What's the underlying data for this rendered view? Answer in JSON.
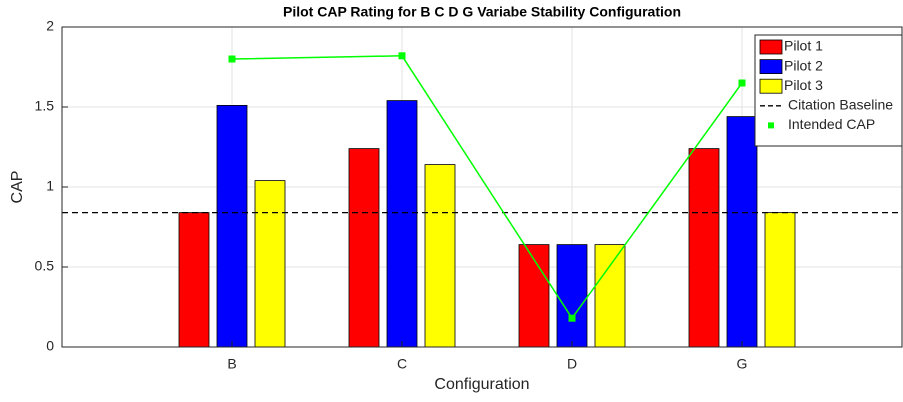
{
  "chart_data": {
    "type": "bar",
    "title": "Pilot CAP Rating for  B C D G Variabe Stability Configuration",
    "xlabel": "Configuration",
    "ylabel": "CAP",
    "categories": [
      "B",
      "C",
      "D",
      "G"
    ],
    "series": [
      {
        "name": "Pilot 1",
        "color": "#ff0000",
        "values": [
          0.84,
          1.24,
          0.64,
          1.24
        ]
      },
      {
        "name": "Pilot 2",
        "color": "#0000ff",
        "values": [
          1.51,
          1.54,
          0.64,
          1.44
        ]
      },
      {
        "name": "Pilot 3",
        "color": "#ffff00",
        "values": [
          1.04,
          1.14,
          0.64,
          0.84
        ]
      }
    ],
    "baseline": {
      "name": "Citation Baseline",
      "value": 0.84,
      "color": "#000000"
    },
    "intended": {
      "name": "Intended CAP",
      "color": "#00ff00",
      "values": [
        1.8,
        1.82,
        0.18,
        1.65
      ]
    },
    "ylim": [
      0,
      2
    ],
    "yticks": [
      0,
      {
        "value": 0.5,
        "label": "0.5"
      },
      1,
      {
        "value": 1.5,
        "label": "1.5"
      },
      2
    ],
    "grid": true,
    "legend": "upper right"
  }
}
